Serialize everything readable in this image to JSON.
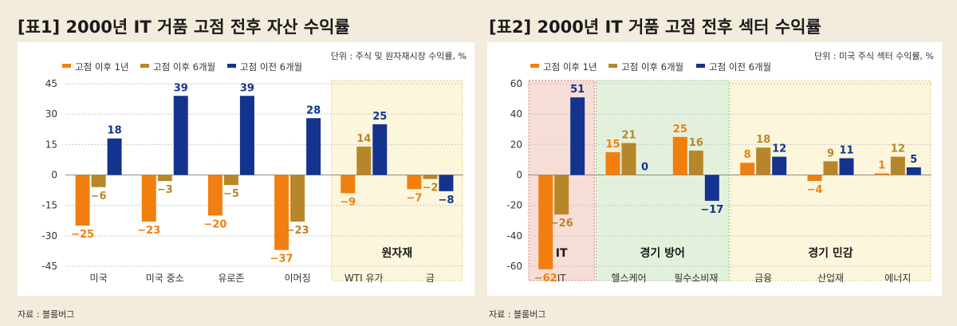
{
  "chart_data": [
    {
      "type": "bar",
      "title": "[표1] 2000년 IT 거품 고점 전후 자산 수익률",
      "unit_note": "단위 : 주식 및 원자재시장 수익률, %",
      "source": "자료 : 블룸버그",
      "categories": [
        "미국",
        "미국 중소",
        "유로존",
        "이머징",
        "WTI 유가",
        "금"
      ],
      "series": [
        {
          "name": "고점 이후 1년",
          "color": "#f07f0f",
          "values": [
            -25,
            -23,
            -20,
            -37,
            -9,
            -7
          ],
          "labels": [
            "−25",
            "−23",
            "−20",
            "−37",
            "−9",
            "−7"
          ]
        },
        {
          "name": "고점 이후 6개월",
          "color": "#b8862a",
          "values": [
            -6,
            -3,
            -5,
            -23,
            14,
            -2
          ],
          "labels": [
            "−6",
            "−3",
            "−5",
            "−23",
            "14",
            "−2"
          ]
        },
        {
          "name": "고점 이전 6개월",
          "color": "#14338e",
          "values": [
            18,
            39,
            39,
            28,
            25,
            -8
          ],
          "labels": [
            "18",
            "39",
            "39",
            "28",
            "25",
            "−8"
          ]
        }
      ],
      "ylim": [
        -45,
        45
      ],
      "yticks": [
        45,
        30,
        15,
        0,
        -15,
        -30,
        -45
      ],
      "groups": [
        {
          "label": "원자재",
          "from": 4,
          "to": 5,
          "fill": "#fbf6dc",
          "border": "#d8d57a"
        }
      ]
    },
    {
      "type": "bar",
      "title": "[표2] 2000년 IT 거품 고점 전후 섹터 수익률",
      "unit_note": "단위 : 미국 주식 섹터 수익률, %",
      "source": "자료 : 블룸버그",
      "categories": [
        "IT",
        "헬스케어",
        "필수소비재",
        "금융",
        "산업재",
        "에너지"
      ],
      "series": [
        {
          "name": "고점 이후 1년",
          "color": "#f07f0f",
          "values": [
            -62,
            15,
            25,
            8,
            -4,
            1
          ],
          "labels": [
            "−62",
            "15",
            "25",
            "8",
            "−4",
            "1"
          ]
        },
        {
          "name": "고점 이후 6개월",
          "color": "#b8862a",
          "values": [
            -26,
            21,
            16,
            18,
            9,
            12
          ],
          "labels": [
            "−26",
            "21",
            "16",
            "18",
            "9",
            "12"
          ]
        },
        {
          "name": "고점 이전 6개월",
          "color": "#14338e",
          "values": [
            51,
            0,
            -17,
            12,
            11,
            5
          ],
          "labels": [
            "51",
            "0",
            "−17",
            "12",
            "11",
            "5"
          ]
        }
      ],
      "ylim": [
        -60,
        60
      ],
      "yticks": [
        60,
        40,
        20,
        0,
        -20,
        -40,
        -60
      ],
      "groups": [
        {
          "label": "IT",
          "from": 0,
          "to": 0,
          "fill": "#f6ddd5",
          "border": "#d87a7a"
        },
        {
          "label": "경기 방어",
          "from": 1,
          "to": 2,
          "fill": "#e3f1dc",
          "border": "#86c486"
        },
        {
          "label": "경기 민감",
          "from": 3,
          "to": 5,
          "fill": "#fbf6dc",
          "border": "#d8d57a"
        }
      ]
    }
  ]
}
